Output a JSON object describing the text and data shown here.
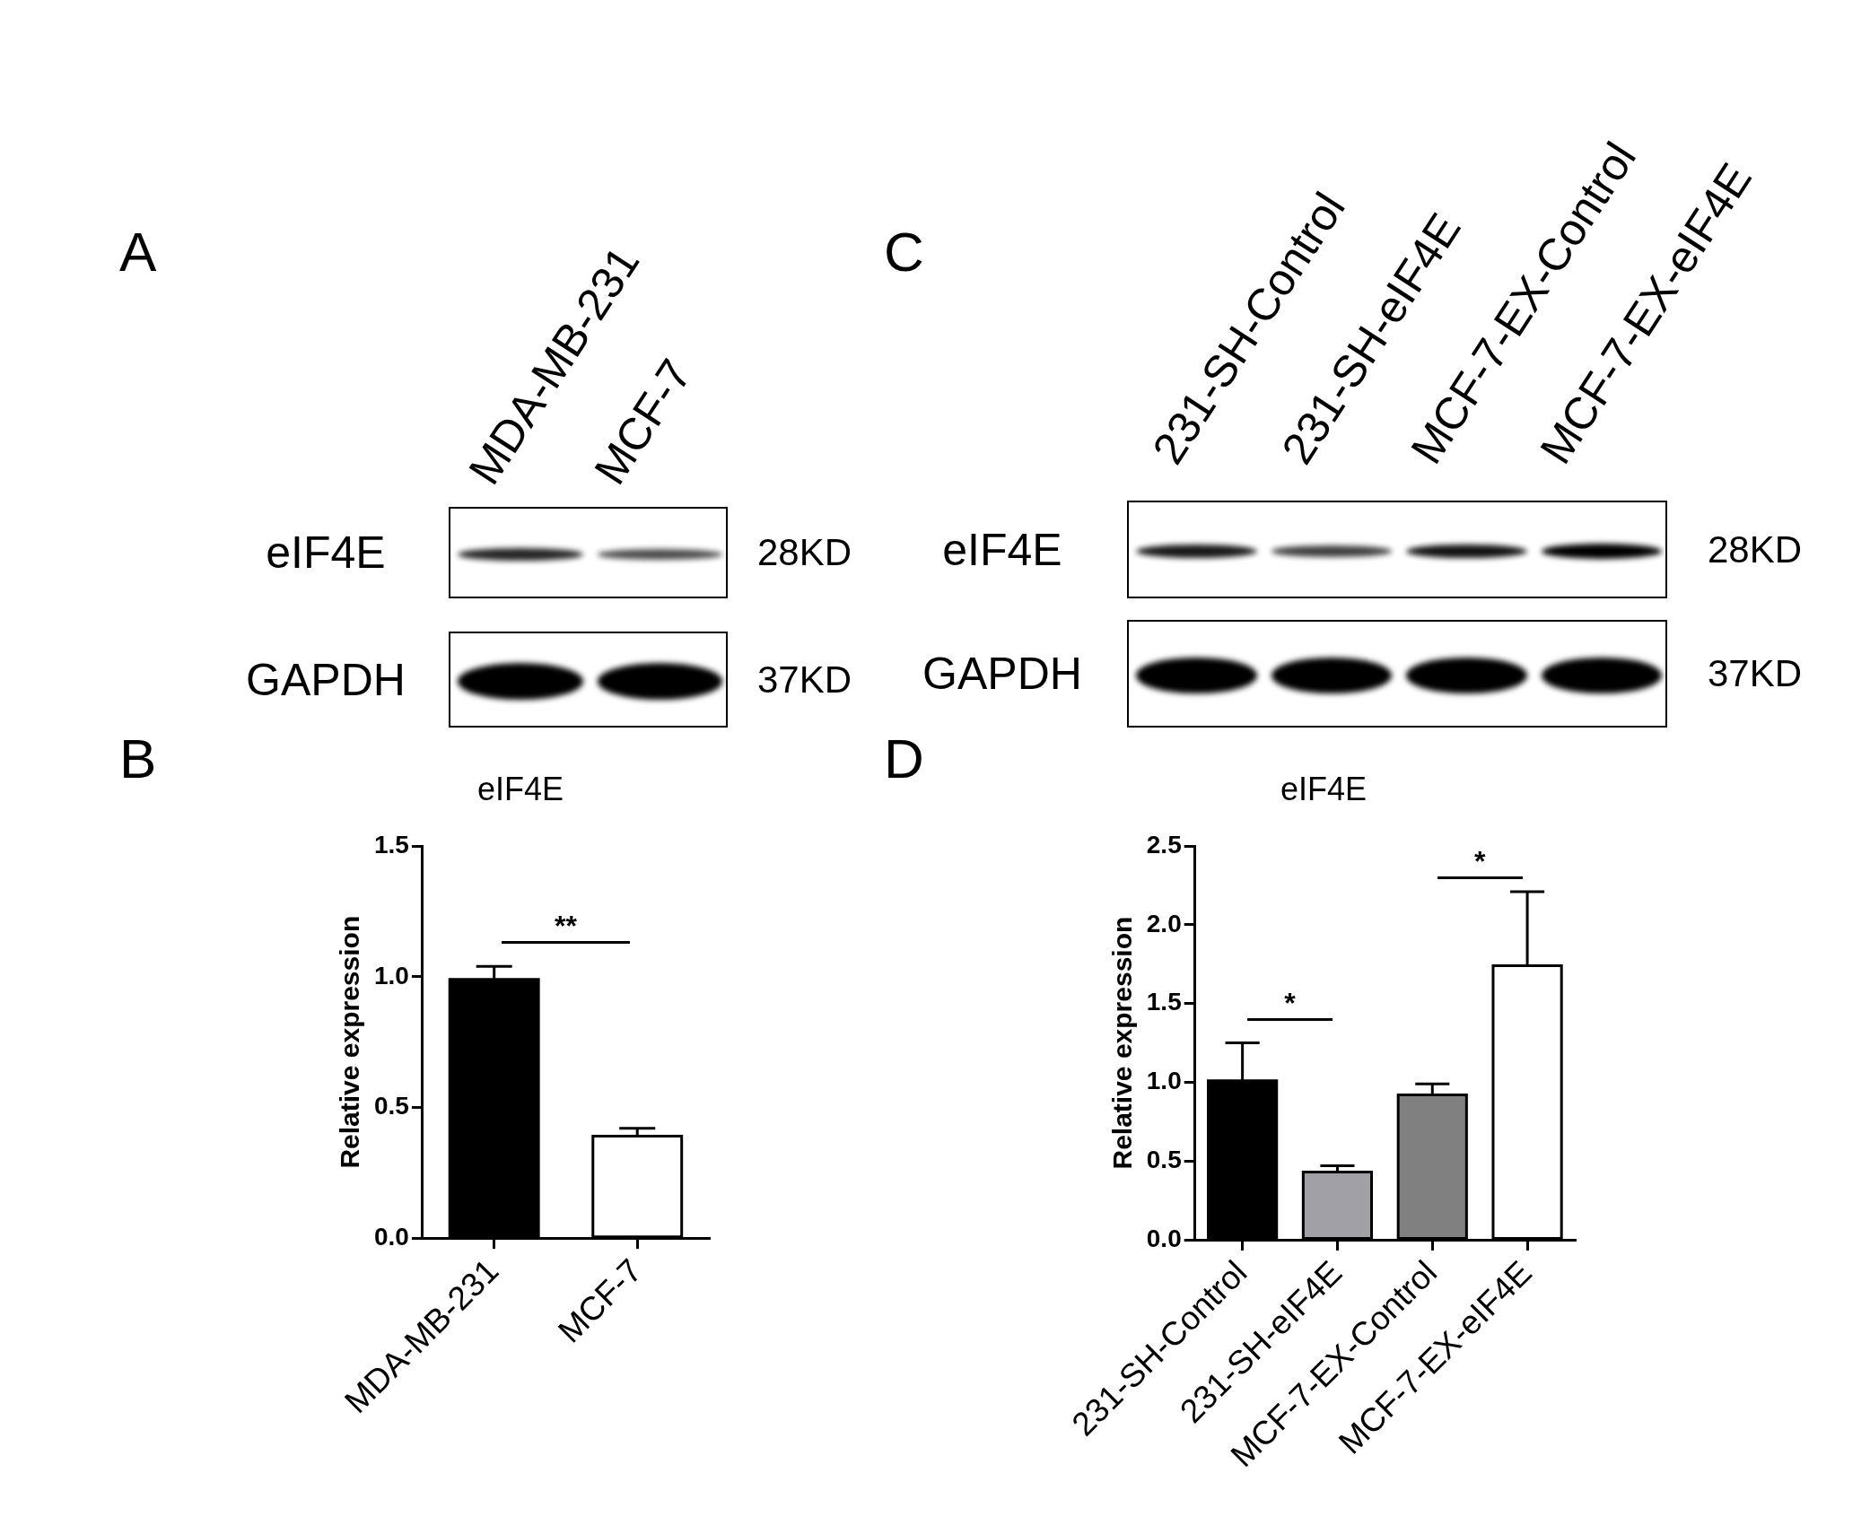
{
  "chart_data": [
    {
      "type": "other",
      "annotations": [
        "A"
      ],
      "categories": [
        "MDA-MB-231",
        "MCF-7"
      ],
      "y_categories": [
        "eIF4E",
        "GAPDH"
      ],
      "y2_categories": [
        "28KD",
        "37KD"
      ]
    },
    {
      "type": "other",
      "annotations": [
        "C"
      ],
      "categories": [
        "231-SH-Control",
        "231-SH-eIF4E",
        "MCF-7-EX-Control",
        "MCF-7-EX-eIF4E"
      ],
      "y_categories": [
        "eIF4E",
        "GAPDH"
      ],
      "y2_categories": [
        "28KD",
        "37KD"
      ]
    },
    {
      "type": "bar",
      "title": "eIF4E",
      "ylabel": "Relative expression",
      "categories": [
        "MDA-MB-231",
        "MCF-7"
      ],
      "values": [
        0.99,
        0.39
      ],
      "errors": [
        [
          0.99,
          1.04
        ],
        [
          0.39,
          0.42
        ]
      ],
      "colors": [
        "#000000",
        "#ffffff"
      ],
      "ylim": [
        0,
        1.5
      ],
      "yticks": [
        {
          "value": 0,
          "label": "0.0"
        },
        0.5,
        {
          "value": 1,
          "label": "1.0"
        },
        1.5
      ],
      "annotations": [
        "B",
        "**"
      ]
    },
    {
      "type": "bar",
      "title": "eIF4E",
      "ylabel": "Relative expression",
      "categories": [
        "231-SH-Control",
        "231-SH-eIF4E",
        "MCF-7-EX-Control",
        "MCF-7-EX-eIF4E"
      ],
      "values": [
        1.01,
        0.43,
        0.92,
        1.74
      ],
      "errors": [
        [
          1.01,
          1.25
        ],
        [
          0.43,
          0.47
        ],
        [
          0.92,
          0.99
        ],
        [
          1.74,
          2.21
        ]
      ],
      "colors": [
        "#000000",
        "#a0a0a6",
        "#808080",
        "#ffffff"
      ],
      "ylim": [
        0,
        2.5
      ],
      "yticks": [
        {
          "value": 0,
          "label": "0.0"
        },
        0.5,
        {
          "value": 1,
          "label": "1.0"
        },
        1.5,
        {
          "value": 2,
          "label": "2.0"
        },
        2.5
      ],
      "annotations": [
        "D",
        "*",
        "*"
      ]
    }
  ]
}
